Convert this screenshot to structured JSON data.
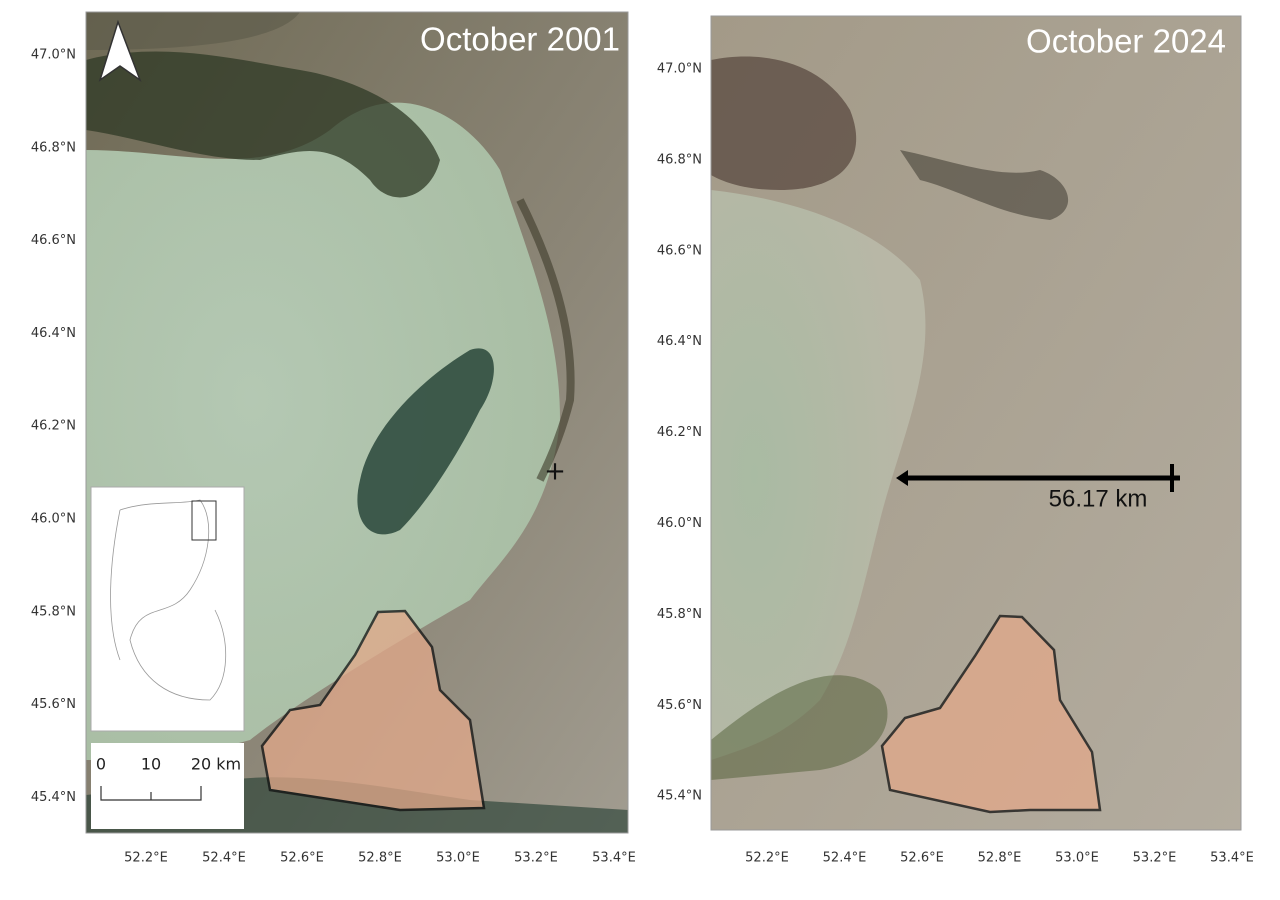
{
  "panels": [
    {
      "title": "October 2001",
      "lat_labels": [
        "47.0°N",
        "46.8°N",
        "46.6°N",
        "46.4°N",
        "46.2°N",
        "46.0°N",
        "45.8°N",
        "45.6°N",
        "45.4°N"
      ],
      "lon_labels": [
        "52.2°E",
        "52.4°E",
        "52.6°E",
        "52.8°E",
        "53.0°E",
        "53.2°E",
        "53.4°E"
      ],
      "scale_bar": [
        "0",
        "10",
        "20 km"
      ]
    },
    {
      "title": "October 2024",
      "lat_labels": [
        "47.0°N",
        "46.8°N",
        "46.6°N",
        "46.4°N",
        "46.2°N",
        "46.0°N",
        "45.8°N",
        "45.6°N",
        "45.4°N"
      ],
      "lon_labels": [
        "52.2°E",
        "52.4°E",
        "52.6°E",
        "52.8°E",
        "53.0°E",
        "53.2°E",
        "53.4°E"
      ],
      "distance_label": "56.17 km"
    }
  ]
}
